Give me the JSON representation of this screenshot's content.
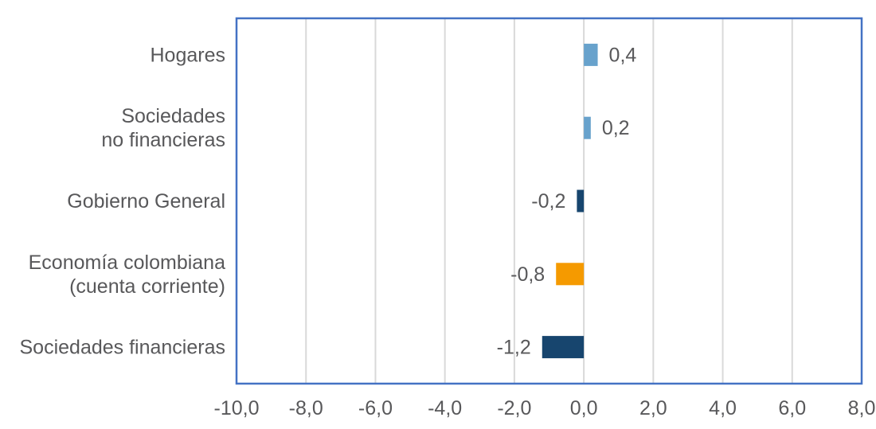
{
  "chart_data": {
    "type": "bar",
    "orientation": "horizontal",
    "title": "",
    "categories": [
      "Hogares",
      "Sociedades\nno financieras",
      "Gobierno General",
      "Economía colombiana\n(cuenta corriente)",
      "Sociedades financieras"
    ],
    "values": [
      0.4,
      0.2,
      -0.2,
      -0.8,
      -1.2
    ],
    "value_labels": [
      "0,4",
      "0,2",
      "-0,2",
      "-0,8",
      "-1,2"
    ],
    "bar_colors": [
      "#68a2cc",
      "#68a2cc",
      "#17456e",
      "#f59a00",
      "#17456e"
    ],
    "xlim": [
      -10,
      8
    ],
    "x_ticks": [
      -10,
      -8,
      -6,
      -4,
      -2,
      0,
      2,
      4,
      6,
      8
    ],
    "x_tick_labels": [
      "-10,0",
      "-8,0",
      "-6,0",
      "-4,0",
      "-2,0",
      "0,0",
      "2,0",
      "4,0",
      "6,0",
      "8,0"
    ],
    "grid": true,
    "legend": false,
    "xlabel": "",
    "ylabel": ""
  },
  "style": {
    "plot_border_color": "#4472c4",
    "gridline_color": "#d9d9d9",
    "text_color": "#58585a",
    "background": "#ffffff"
  }
}
